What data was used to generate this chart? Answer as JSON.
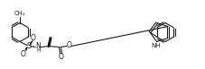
{
  "background": "#ffffff",
  "line_color": "#1a1a1a",
  "line_width": 0.8,
  "fig_width": 2.28,
  "fig_height": 0.77,
  "dpi": 100,
  "xlim": [
    0,
    228
  ],
  "ylim": [
    0,
    77
  ]
}
